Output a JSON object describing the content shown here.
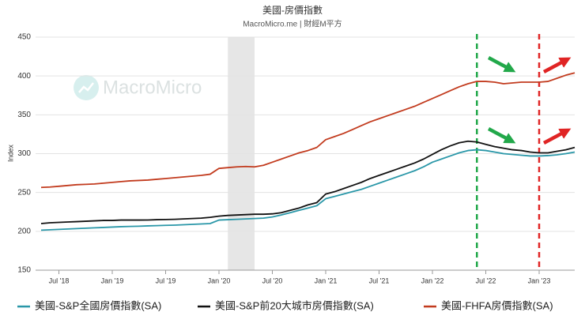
{
  "chart_data": {
    "type": "line",
    "title": "美國-房價指數",
    "subtitle": "MacroMicro.me | 財經M平方",
    "watermark": "MacroMicro",
    "y_label": "Index",
    "x": [
      "2018-05",
      "2018-06",
      "2018-07",
      "2018-08",
      "2018-09",
      "2018-10",
      "2018-11",
      "2018-12",
      "2019-01",
      "2019-02",
      "2019-03",
      "2019-04",
      "2019-05",
      "2019-06",
      "2019-07",
      "2019-08",
      "2019-09",
      "2019-10",
      "2019-11",
      "2019-12",
      "2020-01",
      "2020-02",
      "2020-03",
      "2020-04",
      "2020-05",
      "2020-06",
      "2020-07",
      "2020-08",
      "2020-09",
      "2020-10",
      "2020-11",
      "2020-12",
      "2021-01",
      "2021-02",
      "2021-03",
      "2021-04",
      "2021-05",
      "2021-06",
      "2021-07",
      "2021-08",
      "2021-09",
      "2021-10",
      "2021-11",
      "2021-12",
      "2022-01",
      "2022-02",
      "2022-03",
      "2022-04",
      "2022-05",
      "2022-06",
      "2022-07",
      "2022-08",
      "2022-09",
      "2022-10",
      "2022-11",
      "2022-12",
      "2023-01",
      "2023-02",
      "2023-03",
      "2023-04",
      "2023-05"
    ],
    "xlim": [
      "2018-05",
      "2023-05"
    ],
    "xticks": [
      {
        "value": "2018-07",
        "label": "Jul '18"
      },
      {
        "value": "2019-01",
        "label": "Jan '19"
      },
      {
        "value": "2019-07",
        "label": "Jul '19"
      },
      {
        "value": "2020-01",
        "label": "Jan '20"
      },
      {
        "value": "2020-07",
        "label": "Jul '20"
      },
      {
        "value": "2021-01",
        "label": "Jan '21"
      },
      {
        "value": "2021-07",
        "label": "Jul '21"
      },
      {
        "value": "2022-01",
        "label": "Jan '22"
      },
      {
        "value": "2022-07",
        "label": "Jul '22"
      },
      {
        "value": "2023-01",
        "label": "Jan '23"
      }
    ],
    "ylim": [
      150,
      450
    ],
    "yticks": [
      150,
      200,
      250,
      300,
      350,
      400,
      450
    ],
    "grid": true,
    "shaded": {
      "from": "2020-02",
      "to": "2020-05",
      "color": "#e6e6e6"
    },
    "vlines": [
      {
        "x": "2022-06",
        "color": "#22a84a"
      },
      {
        "x": "2023-01",
        "color": "#e02424"
      }
    ],
    "series": [
      {
        "name": "美國-S&P全國房價指數(SA)",
        "color": "#2a97a8",
        "values": [
          201.5,
          202,
          202.5,
          203,
          203.5,
          204,
          204.5,
          205,
          205.5,
          206,
          206.3,
          206.6,
          207,
          207.3,
          207.7,
          208,
          208.5,
          209,
          209.5,
          210,
          214.5,
          215,
          215.5,
          216,
          216.5,
          217,
          218.5,
          221,
          224,
          227,
          230,
          233,
          242,
          245,
          248,
          251,
          254,
          258,
          262,
          266,
          270,
          274,
          278,
          283,
          289,
          293,
          297,
          301,
          304,
          305,
          304,
          302,
          300,
          299,
          298,
          297,
          297,
          297.5,
          298.5,
          300,
          302
        ]
      },
      {
        "name": "美國-S&P前20大城市房價指數(SA)",
        "color": "#111111",
        "values": [
          210,
          211,
          211.5,
          212,
          212.5,
          213,
          213.5,
          214,
          214,
          214.5,
          214.5,
          214.5,
          214.6,
          215,
          215.2,
          215.5,
          216,
          216.5,
          217,
          218,
          219.5,
          220.5,
          221,
          221.5,
          222,
          222,
          222.5,
          224,
          227,
          230,
          234,
          237,
          248,
          251,
          255,
          259,
          263,
          268,
          272,
          276,
          280,
          284,
          288,
          293,
          299,
          305,
          310,
          314,
          316,
          315,
          312,
          309,
          307,
          305,
          304,
          302,
          301,
          301,
          303,
          305,
          308
        ]
      },
      {
        "name": "美國-FHFA房價指數(SA)",
        "color": "#c23b1e",
        "values": [
          256.5,
          257,
          258,
          259,
          260,
          260.5,
          261,
          262,
          263,
          264,
          265,
          265.5,
          266,
          267,
          268,
          269,
          270,
          271,
          272,
          273.5,
          281,
          282,
          283,
          283.5,
          283,
          285,
          289,
          293,
          297,
          301,
          304,
          308,
          318,
          322,
          326,
          331,
          336,
          341,
          345,
          349,
          353,
          357,
          361,
          366,
          371,
          376,
          381,
          386,
          390,
          393,
          393,
          392,
          390,
          391,
          392,
          392,
          392,
          393,
          397,
          401,
          404
        ]
      }
    ]
  }
}
